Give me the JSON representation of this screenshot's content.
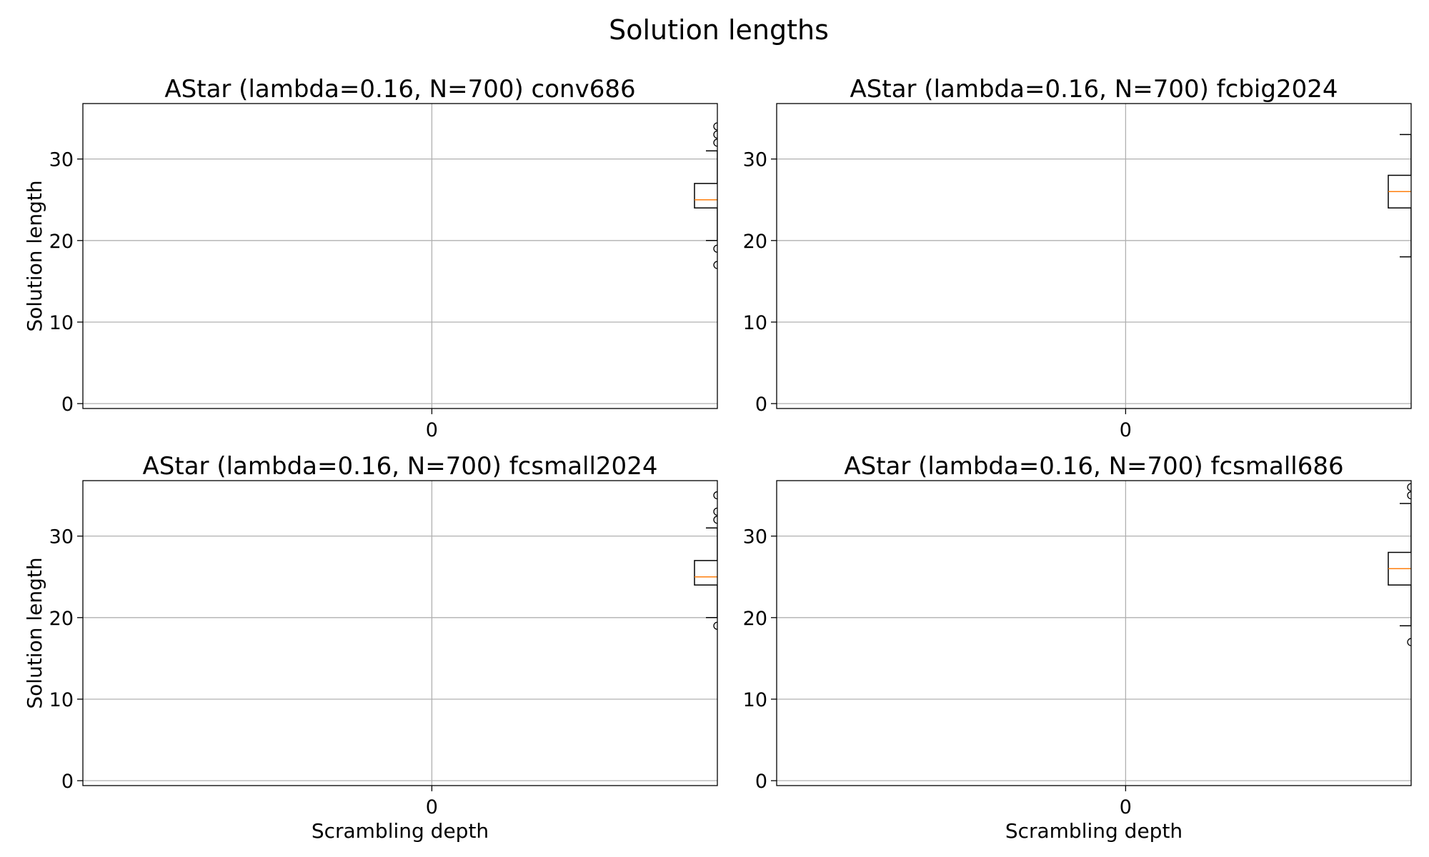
{
  "figure": {
    "title": "Solution lengths"
  },
  "colors": {
    "box": "#000000",
    "median": "#ff7f0e",
    "grid": "#b0b0b0",
    "axes": "#000000",
    "background": "#ffffff"
  },
  "chart_data": [
    {
      "type": "box",
      "title": "AStar (lambda=0.16, N=700) conv686",
      "xlabel": "",
      "ylabel": "Solution length",
      "x_ticks": [
        0
      ],
      "y_ticks": [
        0,
        10,
        20,
        30
      ],
      "xlim": [
        -1.1,
        0.9
      ],
      "ylim": [
        -0.6,
        36.8
      ],
      "grid": true,
      "box": {
        "x": 0.9,
        "q1": 24,
        "median": 25,
        "q3": 27,
        "whisker_low": 20,
        "whisker_high": 31,
        "fliers": [
          17,
          19,
          32,
          33,
          34
        ]
      }
    },
    {
      "type": "box",
      "title": "AStar (lambda=0.16, N=700) fcbig2024",
      "xlabel": "",
      "ylabel": "",
      "x_ticks": [
        0
      ],
      "y_ticks": [
        0,
        10,
        20,
        30
      ],
      "xlim": [
        -1.1,
        0.9
      ],
      "ylim": [
        -0.6,
        36.8
      ],
      "grid": true,
      "box": {
        "x": 0.9,
        "q1": 24,
        "median": 26,
        "q3": 28,
        "whisker_low": 18,
        "whisker_high": 33,
        "fliers": []
      }
    },
    {
      "type": "box",
      "title": "AStar (lambda=0.16, N=700) fcsmall2024",
      "xlabel": "Scrambling depth",
      "ylabel": "Solution length",
      "x_ticks": [
        0
      ],
      "y_ticks": [
        0,
        10,
        20,
        30
      ],
      "xlim": [
        -1.1,
        0.9
      ],
      "ylim": [
        -0.6,
        36.8
      ],
      "grid": true,
      "box": {
        "x": 0.9,
        "q1": 24,
        "median": 25,
        "q3": 27,
        "whisker_low": 20,
        "whisker_high": 31,
        "fliers": [
          19,
          32,
          33,
          35
        ]
      }
    },
    {
      "type": "box",
      "title": "AStar (lambda=0.16, N=700) fcsmall686",
      "xlabel": "Scrambling depth",
      "ylabel": "",
      "x_ticks": [
        0
      ],
      "y_ticks": [
        0,
        10,
        20,
        30
      ],
      "xlim": [
        -1.1,
        0.9
      ],
      "ylim": [
        -0.6,
        36.8
      ],
      "grid": true,
      "box": {
        "x": 0.9,
        "q1": 24,
        "median": 26,
        "q3": 28,
        "whisker_low": 19,
        "whisker_high": 34,
        "fliers": [
          17,
          35,
          36
        ]
      }
    }
  ]
}
